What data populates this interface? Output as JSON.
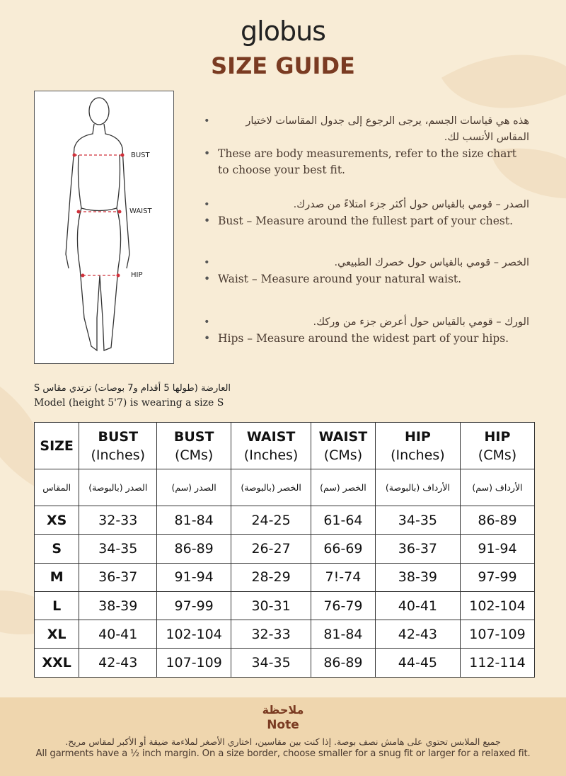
{
  "brand": "globus",
  "title": "SIZE GUIDE",
  "colors": {
    "accent": "#7a3b22",
    "background": "#f8ecd6",
    "note_band": "#efd6ae",
    "marker": "#d0303a"
  },
  "figure": {
    "labels": [
      "BUST",
      "WAIST",
      "HIP"
    ]
  },
  "bullets": [
    {
      "ar": "هذه هي قياسات الجسم، يرجى الرجوع إلى جدول المقاسات لاختيار المقاس الأنسب لك.",
      "en": "These are body measurements, refer to the size chart to choose your best fit."
    },
    {
      "ar": "الصدر – قومي بالقياس حول أكثر جزء امتلاءً من صدرك.",
      "en": "Bust – Measure around the fullest part of your chest."
    },
    {
      "ar": "الخصر – قومي بالقياس حول خصرك الطبيعي.",
      "en": "Waist – Measure around your natural waist."
    },
    {
      "ar": "الورك – قومي بالقياس حول أعرض جزء من وركك.",
      "en": "Hips – Measure around the widest part of your hips."
    }
  ],
  "model": {
    "ar": "العارضة (طولها 5 أقدام و7 بوصات) ترتدي مقاس S",
    "en": "Model (height 5'7) is wearing a size S"
  },
  "table": {
    "headers": [
      [
        "SIZE",
        ""
      ],
      [
        "BUST",
        "(Inches)"
      ],
      [
        "BUST",
        "(CMs)"
      ],
      [
        "WAIST",
        "(Inches)"
      ],
      [
        "WAIST",
        "(CMs)"
      ],
      [
        "HIP",
        "(Inches)"
      ],
      [
        "HIP",
        "(CMs)"
      ]
    ],
    "headers_ar": [
      "المقاس",
      "الصدر (بالبوصة)",
      "الصدر (سم)",
      "الخصر (بالبوصة)",
      "الخصر (سم)",
      "الأرداف (بالبوصة)",
      "الأرداف (سم)"
    ],
    "rows": [
      [
        "XS",
        "32-33",
        "81-84",
        "24-25",
        "61-64",
        "34-35",
        "86-89"
      ],
      [
        "S",
        "34-35",
        "86-89",
        "26-27",
        "66-69",
        "36-37",
        "91-94"
      ],
      [
        "M",
        "36-37",
        "91-94",
        "28-29",
        "7!-74",
        "38-39",
        "97-99"
      ],
      [
        "L",
        "38-39",
        "97-99",
        "30-31",
        "76-79",
        "40-41",
        "102-104"
      ],
      [
        "XL",
        "40-41",
        "102-104",
        "32-33",
        "81-84",
        "42-43",
        "107-109"
      ],
      [
        "XXL",
        "42-43",
        "107-109",
        "34-35",
        "86-89",
        "44-45",
        "112-114"
      ]
    ]
  },
  "note": {
    "title_ar": "ملاحظة",
    "title_en": "Note",
    "text_ar": "جميع الملابس تحتوي على هامش نصف بوصة. إذا كنت بين مقاسين، اختاري الأصغر لملاءمة ضيقة أو الأكبر لمقاس مريح.",
    "text_en": "All garments have a ½ inch margin. On a size border, choose smaller for a snug fit or larger for a relaxed fit."
  }
}
